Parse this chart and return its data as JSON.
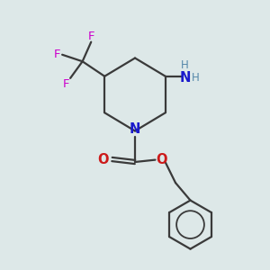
{
  "background_color": "#dde8e8",
  "bond_color": "#3a3a3a",
  "N_color": "#1a1acc",
  "O_color": "#cc1a1a",
  "F_color": "#cc00cc",
  "NH2_H_color": "#5588aa",
  "figsize": [
    3.0,
    3.0
  ],
  "dpi": 100,
  "xlim": [
    0,
    10
  ],
  "ylim": [
    0,
    10
  ]
}
